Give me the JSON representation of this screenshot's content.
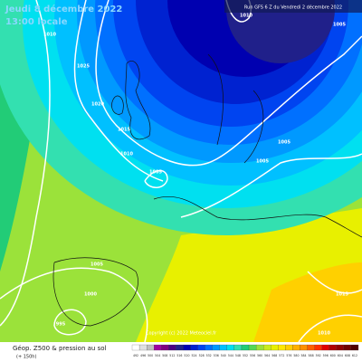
{
  "header": {
    "date": "Jeudi 8 décembre 2022",
    "time": "13:00 locale",
    "run": "Run GFS 6 Z du Vendredi 2 décembre 2022"
  },
  "footer": {
    "title": "Géop. Z500 & pression au sol",
    "lead": "(+ 150h)",
    "copyright": "Copyright (c) 2022 Meteociel.fr"
  },
  "isobar_labels": [
    "1010",
    "1025",
    "1020",
    "1015",
    "1010",
    "1005",
    "1010",
    "1005",
    "1005",
    "1005",
    "1005",
    "1000",
    "995",
    "1015",
    "1010"
  ],
  "scale": {
    "labels": [
      "492",
      "496",
      "500",
      "504",
      "508",
      "512",
      "516",
      "520",
      "524",
      "528",
      "532",
      "536",
      "540",
      "544",
      "548",
      "552",
      "556",
      "560",
      "564",
      "568",
      "572",
      "576",
      "580",
      "584",
      "588",
      "592",
      "596",
      "600",
      "604",
      "608",
      "612"
    ]
  }
}
